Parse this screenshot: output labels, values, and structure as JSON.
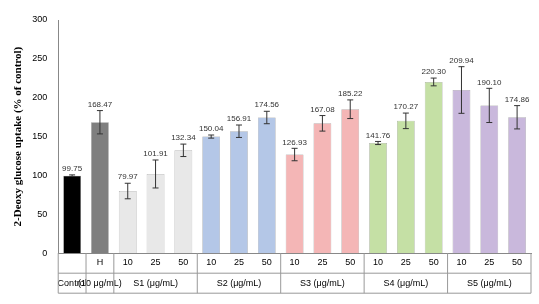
{
  "chart_data": {
    "type": "bar",
    "y_label": "2-Deoxy glucose uptake (% of control)",
    "categories": [
      null,
      "H",
      "10",
      "25",
      "50",
      "10",
      "25",
      "50",
      "10",
      "25",
      "50",
      "10",
      "25",
      "50",
      "10",
      "25",
      "50"
    ],
    "groups": [
      {
        "label": "Control",
        "size": 1
      },
      {
        "label": "(10 μg/mL)",
        "size": 1
      },
      {
        "label": "S1 (μg/mL)",
        "size": 3
      },
      {
        "label": "S2 (μg/mL)",
        "size": 3
      },
      {
        "label": "S3 (μg/mL)",
        "size": 3
      },
      {
        "label": "S4 (μg/mL)",
        "size": 3
      },
      {
        "label": "S5 (μg/mL)",
        "size": 3
      }
    ],
    "values": [
      99.75,
      168.47,
      79.97,
      101.91,
      132.34,
      150.04,
      156.91,
      174.56,
      126.93,
      167.08,
      185.22,
      141.76,
      170.27,
      220.3,
      209.94,
      190.1,
      174.86
    ],
    "value_labels": [
      "99.75",
      "168.47",
      "79.97",
      "101.91",
      "132.34",
      "150.04",
      "156.91",
      "174.56",
      "126.93",
      "167.08",
      "185.22",
      "141.76",
      "170.27",
      "220.30",
      "209.94",
      "190.10",
      "174.86"
    ],
    "errors": [
      1,
      15,
      10,
      18,
      8,
      2,
      8,
      8,
      8,
      10,
      12,
      2,
      10,
      5,
      30,
      22,
      15
    ],
    "colors": [
      "#000000",
      "#7f7f7f",
      "#e8e8e8",
      "#e8e8e8",
      "#e8e8e8",
      "#b4c7e7",
      "#b4c7e7",
      "#b4c7e7",
      "#f4b6b6",
      "#f4b6b6",
      "#f4b6b6",
      "#c5e0a5",
      "#c5e0a5",
      "#c5e0a5",
      "#c9b8dc",
      "#c9b8dc",
      "#c9b8dc"
    ],
    "ylim": [
      0,
      300
    ],
    "yticks": [
      0,
      50,
      100,
      150,
      200,
      250,
      300
    ],
    "grid": false,
    "data_labels": true
  }
}
